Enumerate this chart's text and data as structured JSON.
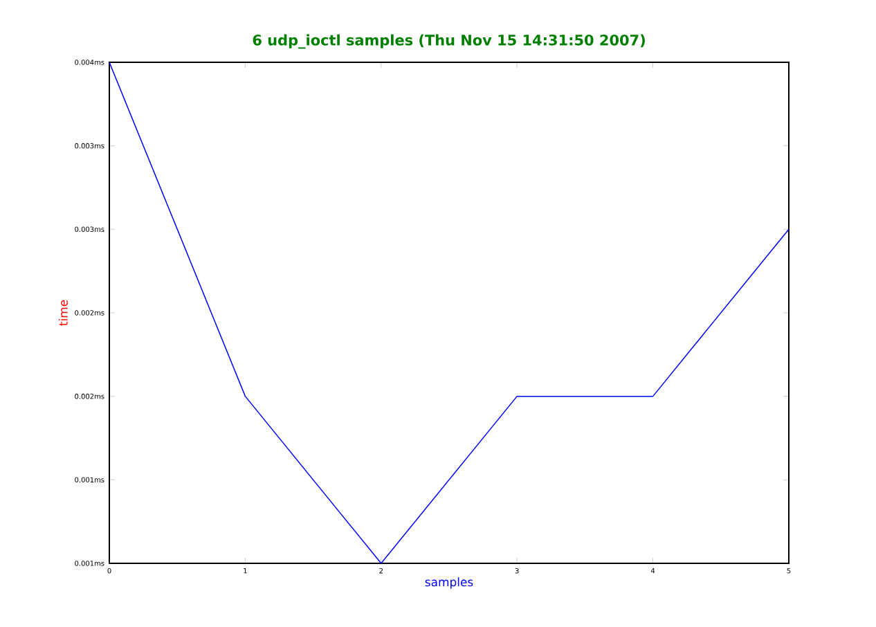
{
  "chart_data": {
    "type": "line",
    "title": "6 udp_ioctl samples (Thu Nov 15 14:31:50 2007)",
    "xlabel": "samples",
    "ylabel": "time",
    "x": [
      0,
      1,
      2,
      3,
      4,
      5
    ],
    "series": [
      {
        "color": "#0000ff",
        "values": [
          0.004,
          0.002,
          0.001,
          0.002,
          0.002,
          0.003
        ]
      }
    ],
    "xlim": [
      0,
      5
    ],
    "ylim": [
      0.001,
      0.004
    ],
    "xticks": [
      0,
      1,
      2,
      3,
      4,
      5
    ],
    "yticks": [
      {
        "value": 0.001,
        "label": "0.001ms"
      },
      {
        "value": 0.0015,
        "label": "0.001ms"
      },
      {
        "value": 0.002,
        "label": "0.002ms"
      },
      {
        "value": 0.0025,
        "label": "0.002ms"
      },
      {
        "value": 0.003,
        "label": "0.003ms"
      },
      {
        "value": 0.0035,
        "label": "0.003ms"
      },
      {
        "value": 0.004,
        "label": "0.004ms"
      }
    ],
    "grid": false,
    "marker": "none",
    "line_style": "solid"
  }
}
